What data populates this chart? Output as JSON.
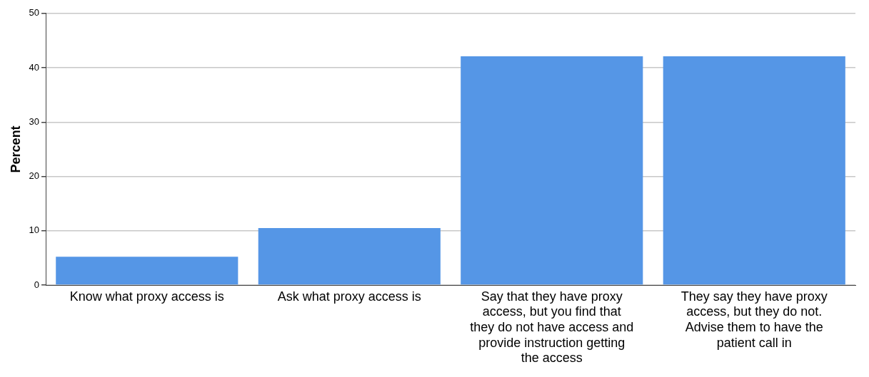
{
  "chart_data": {
    "type": "bar",
    "ylabel": "Percent",
    "categories": [
      "Know what proxy access is",
      "Ask what proxy access is",
      "Say that they have proxy access, but you find that they do not have access and provide instruction getting the access",
      "They say they have proxy access, but they do not. Advise them to have the patient call in"
    ],
    "values": [
      5.2,
      10.5,
      42.1,
      42.1
    ],
    "color": "#5596e6",
    "ylim": [
      0,
      50
    ],
    "yticks": [
      0,
      10,
      20,
      30,
      40,
      50
    ],
    "grid": "y",
    "legend": false
  }
}
